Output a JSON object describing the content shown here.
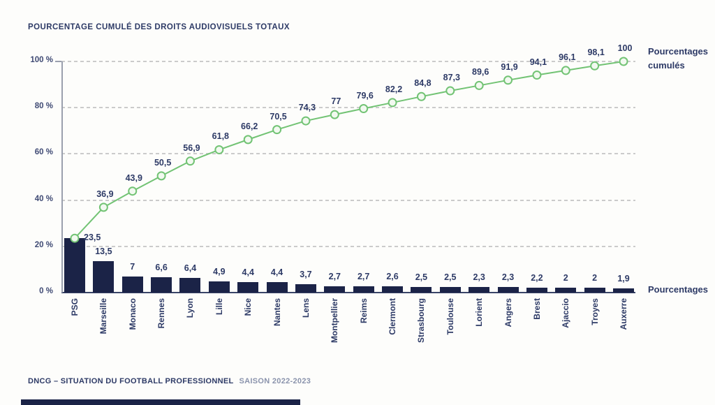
{
  "title": "POURCENTAGE CUMULÉ DES DROITS AUDIOVISUELS TOTAUX",
  "legend": {
    "cumulative": "Pourcentages cumulés",
    "bars": "Pourcentages"
  },
  "footer": {
    "bold": "DNCG – SITUATION DU FOOTBALL PROFESSIONNEL",
    "light": "SAISON 2022-2023"
  },
  "colors": {
    "bar_navy": "#1b2347",
    "text_navy": "#2d3a66",
    "line_green": "#72c374",
    "marker_fill": "#f2f9f0",
    "grid_gray": "#cbcbcb",
    "background": "#fdfdfb"
  },
  "chart_data": {
    "type": "bar",
    "subtype": "pareto: bars + cumulative line",
    "title": "POURCENTAGE CUMULÉ DES DROITS AUDIOVISUELS TOTAUX",
    "xlabel": "",
    "ylabel": "",
    "ylim": [
      0,
      100
    ],
    "grid": "dashed horizontal",
    "legend_position": "right",
    "y_tick_labels": [
      "100 %",
      "80 %",
      "60 %",
      "40 %",
      "20 %",
      "0 %"
    ],
    "y_tick_values": [
      100,
      80,
      60,
      40,
      20,
      0
    ],
    "categories": [
      "PSG",
      "Marseille",
      "Monaco",
      "Rennes",
      "Lyon",
      "Lille",
      "Nice",
      "Nantes",
      "Lens",
      "Montpellier",
      "Reims",
      "Clermont",
      "Strasbourg",
      "Toulouse",
      "Lorient",
      "Angers",
      "Brest",
      "Ajaccio",
      "Troyes",
      "Auxerre"
    ],
    "series": [
      {
        "name": "Pourcentages",
        "type": "bar",
        "values": [
          23.5,
          13.5,
          7,
          6.6,
          6.4,
          4.9,
          4.4,
          4.4,
          3.7,
          2.7,
          2.7,
          2.6,
          2.5,
          2.5,
          2.3,
          2.3,
          2.2,
          2,
          2,
          1.9
        ],
        "labels": [
          "",
          "13,5",
          "7",
          "6,6",
          "6,4",
          "4,9",
          "4,4",
          "4,4",
          "3,7",
          "2,7",
          "2,7",
          "2,6",
          "2,5",
          "2,5",
          "2,3",
          "2,3",
          "2,2",
          "2",
          "2",
          "1,9"
        ]
      },
      {
        "name": "Pourcentages cumulés",
        "type": "line",
        "values": [
          23.5,
          36.9,
          43.9,
          50.5,
          56.9,
          61.8,
          66.2,
          70.5,
          74.3,
          77,
          79.6,
          82.2,
          84.8,
          87.3,
          89.6,
          91.9,
          94.1,
          96.1,
          98.1,
          100
        ],
        "labels": [
          "23,5",
          "36,9",
          "43,9",
          "50,5",
          "56,9",
          "61,8",
          "66,2",
          "70,5",
          "74,3",
          "77",
          "79,6",
          "82,2",
          "84,8",
          "87,3",
          "89,6",
          "91,9",
          "94,1",
          "96,1",
          "98,1",
          "100"
        ]
      }
    ]
  }
}
